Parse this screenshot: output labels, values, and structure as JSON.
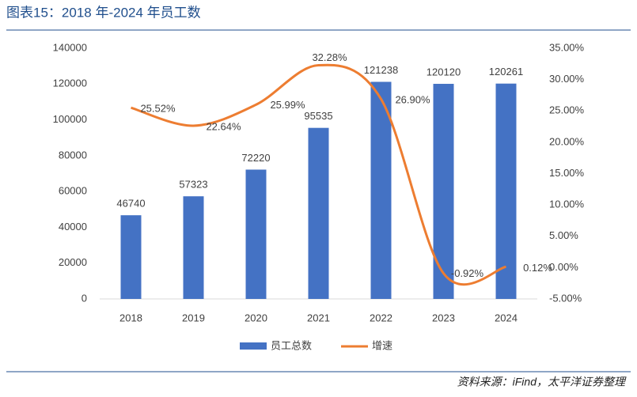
{
  "chart_data": {
    "type": "bar_line",
    "title": "图表15：2018 年-2024 年员工数",
    "source": "资料来源：iFind，太平洋证券整理",
    "categories": [
      "2018",
      "2019",
      "2020",
      "2021",
      "2022",
      "2023",
      "2024"
    ],
    "series": [
      {
        "name": "员工总数",
        "type": "bar",
        "color": "#4472c4",
        "values": [
          46740,
          57323,
          72220,
          95535,
          121238,
          120120,
          120261
        ]
      },
      {
        "name": "增速",
        "type": "line",
        "axis": "y2",
        "color": "#ed7d31",
        "values": [
          25.52,
          22.64,
          25.99,
          32.28,
          26.9,
          -0.92,
          0.12
        ],
        "value_labels": [
          "25.52%",
          "22.64%",
          "25.99%",
          "32.28%",
          "26.90%",
          "-0.92%",
          "0.12%"
        ]
      }
    ],
    "ylim": [
      0,
      140000
    ],
    "yticks": [
      0,
      20000,
      40000,
      60000,
      80000,
      100000,
      120000,
      140000
    ],
    "y2lim": [
      -5,
      35
    ],
    "y2ticks": [
      {
        "value": -5,
        "label": "-5.00%"
      },
      {
        "value": 0,
        "label": "0.00%"
      },
      {
        "value": 5,
        "label": "5.00%"
      },
      {
        "value": 10,
        "label": "10.00%"
      },
      {
        "value": 15,
        "label": "15.00%"
      },
      {
        "value": 20,
        "label": "20.00%"
      },
      {
        "value": 25,
        "label": "25.00%"
      },
      {
        "value": 30,
        "label": "30.00%"
      },
      {
        "value": 35,
        "label": "35.00%"
      }
    ],
    "grid": false,
    "legend": "bottom"
  }
}
